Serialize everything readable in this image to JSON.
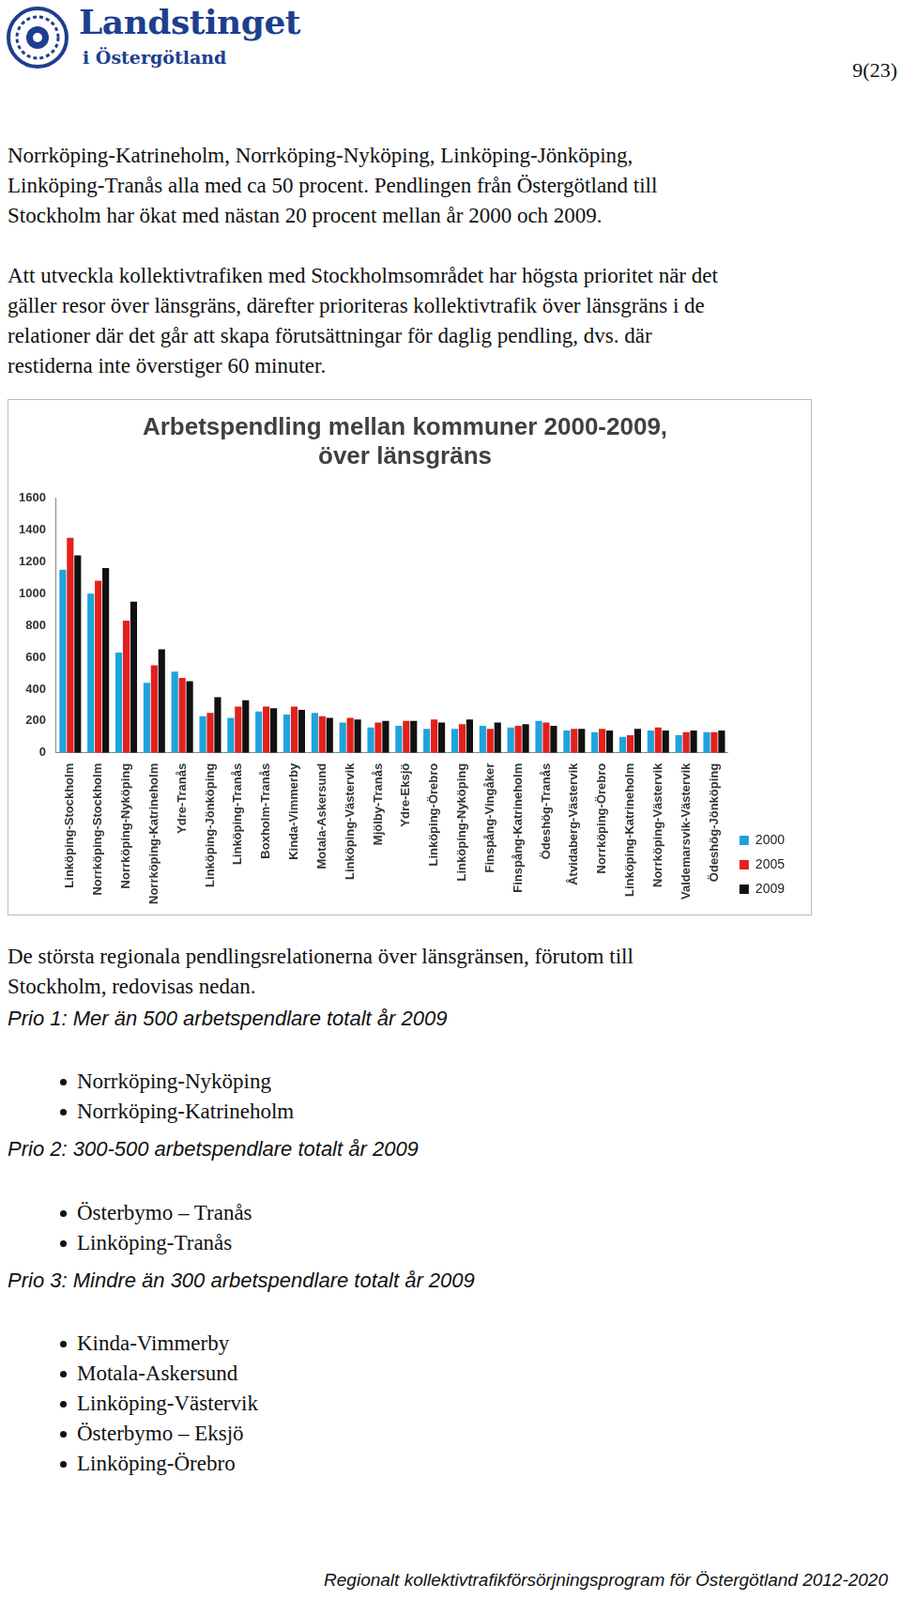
{
  "header": {
    "logo_title": "Landstinget",
    "logo_subtitle": "i Östergötland",
    "page": "9(23)"
  },
  "paragraphs": [
    [
      "Norrköping-Katrineholm, Norrköping-Nyköping, Linköping-Jönköping,",
      "Linköping-Tranås alla med ca 50 procent. Pendlingen från Östergötland till",
      "Stockholm har ökat med nästan 20 procent mellan år 2000 och 2009."
    ],
    [
      "Att utveckla kollektivtrafiken med Stockholmsområdet har högsta prioritet när det",
      "gäller resor över länsgräns, därefter prioriteras kollektivtrafik över länsgräns i de",
      "relationer där det går att skapa förutsättningar för daglig pendling, dvs. där",
      "restiderna inte överstiger 60 minuter."
    ]
  ],
  "chart_data": {
    "type": "bar",
    "title": [
      "Arbetspendling mellan kommuner 2000-2009,",
      "över länsgräns"
    ],
    "categories": [
      "Linköping-Stockholm",
      "Norrköping-Stockholm",
      "Norrköping-Nyköping",
      "Norrköping-Katrineholm",
      "Ydre-Tranås",
      "Linköping-Jönköping",
      "Linköping-Tranås",
      "Boxholm-Tranås",
      "Kinda-Vimmerby",
      "Motala-Askersund",
      "Linköping-Västervik",
      "Mjölby-Tranås",
      "Ydre-Eksjö",
      "Linköping-Örebro",
      "Linköping-Nyköping",
      "Finspång-Vingåker",
      "Finspång-Katrineholm",
      "Ödeshög-Tranås",
      "Åtvidaberg-Västervik",
      "Norrköping-Örebro",
      "Linköping-Katrineholm",
      "Norrköping-Västervik",
      "Valdemarsvik-Västervik",
      "Ödeshög-Jönköping"
    ],
    "series": [
      {
        "name": "2000",
        "color": "#1fa3dc",
        "values": [
          1150,
          1000,
          630,
          440,
          510,
          230,
          220,
          260,
          240,
          250,
          190,
          160,
          170,
          150,
          150,
          170,
          160,
          200,
          140,
          130,
          100,
          140,
          110,
          130
        ]
      },
      {
        "name": "2005",
        "color": "#e3201b",
        "values": [
          1350,
          1080,
          830,
          550,
          470,
          250,
          290,
          290,
          290,
          230,
          220,
          190,
          200,
          210,
          180,
          150,
          170,
          190,
          150,
          150,
          110,
          160,
          130,
          130
        ]
      },
      {
        "name": "2009",
        "color": "#111111",
        "values": [
          1240,
          1160,
          950,
          650,
          450,
          350,
          330,
          280,
          270,
          220,
          210,
          200,
          200,
          190,
          210,
          190,
          180,
          170,
          150,
          140,
          150,
          140,
          140,
          140
        ]
      }
    ],
    "ylim": [
      0,
      1600
    ],
    "yticks": [
      0,
      200,
      400,
      600,
      800,
      1000,
      1200,
      1400,
      1600
    ],
    "grid": false,
    "legend": "right"
  },
  "caption": [
    "De största regionala pendlingsrelationerna över länsgränsen, förutom till",
    "Stockholm, redovisas nedan."
  ],
  "priorities": [
    {
      "heading": "Prio 1: Mer än 500 arbetspendlare totalt år 2009",
      "items": [
        "Norrköping-Nyköping",
        "Norrköping-Katrineholm"
      ]
    },
    {
      "heading": "Prio 2: 300-500 arbetspendlare totalt år 2009",
      "items": [
        "Österbymo – Tranås",
        "Linköping-Tranås"
      ]
    },
    {
      "heading": "Prio 3: Mindre än 300 arbetspendlare totalt år 2009",
      "items": [
        "Kinda-Vimmerby",
        "Motala-Askersund",
        "Linköping-Västervik",
        "Österbymo – Eksjö",
        "Linköping-Örebro"
      ]
    }
  ],
  "footer": "Regionalt kollektivtrafikförsörjningsprogram för Östergötland 2012-2020"
}
